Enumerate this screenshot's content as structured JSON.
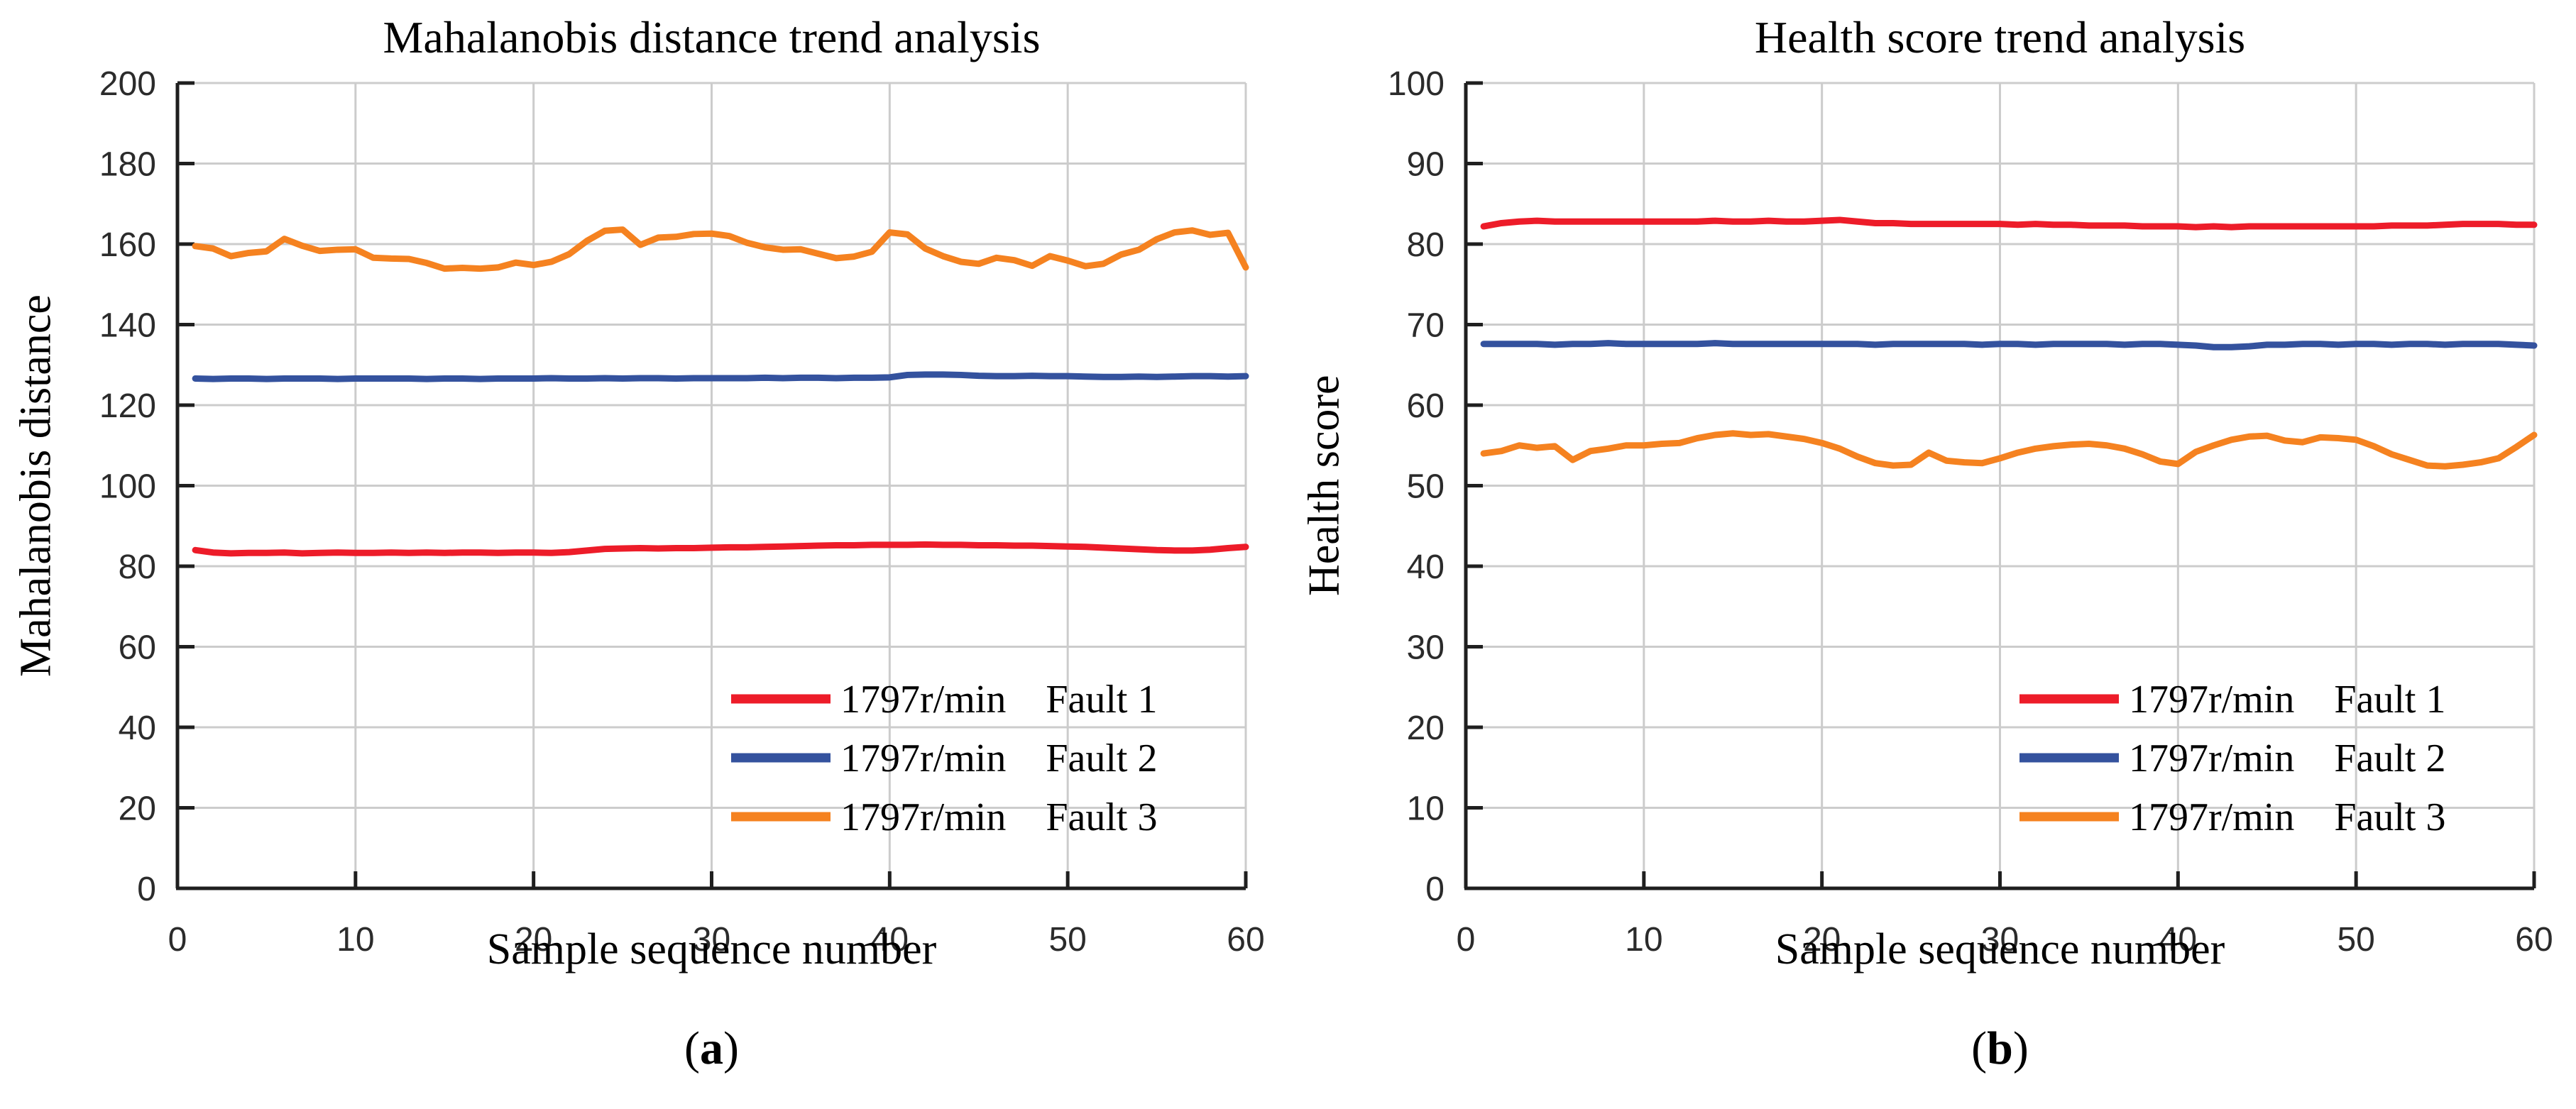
{
  "figure": {
    "background": "#ffffff"
  },
  "colors": {
    "fault1_red": "#ed1c29",
    "fault2_blue": "#34529e",
    "fault3_orange": "#f58220",
    "gridline": "#cccccc",
    "axis": "#1f1f1f",
    "tick_text": "#2b2b2b"
  },
  "panels": [
    {
      "id": "a",
      "title": "Mahalanobis distance trend analysis",
      "ylabel": "Mahalanobis distance",
      "xlabel": "Sample sequence number",
      "sublabel": {
        "open": "(",
        "letter": "a",
        "close": ")"
      }
    },
    {
      "id": "b",
      "title": "Health score trend analysis",
      "ylabel": "Health score",
      "xlabel": "Sample sequence number",
      "sublabel": {
        "open": "(",
        "letter": "b",
        "close": ")"
      }
    }
  ],
  "chart_data": [
    {
      "type": "line",
      "title": "Mahalanobis distance trend analysis",
      "xlabel": "Sample sequence number",
      "ylabel": "Mahalanobis distance",
      "xlim": [
        0,
        60
      ],
      "ylim": [
        0,
        200
      ],
      "xticks": [
        0,
        10,
        20,
        30,
        40,
        50,
        60
      ],
      "yticks": [
        0,
        20,
        40,
        60,
        80,
        100,
        120,
        140,
        160,
        180,
        200
      ],
      "grid": true,
      "legend_position": "lower right",
      "x": [
        1,
        2,
        3,
        4,
        5,
        6,
        7,
        8,
        9,
        10,
        11,
        12,
        13,
        14,
        15,
        16,
        17,
        18,
        19,
        20,
        21,
        22,
        23,
        24,
        25,
        26,
        27,
        28,
        29,
        30,
        31,
        32,
        33,
        34,
        35,
        36,
        37,
        38,
        39,
        40,
        41,
        42,
        43,
        44,
        45,
        46,
        47,
        48,
        49,
        50,
        51,
        52,
        53,
        54,
        55,
        56,
        57,
        58,
        59,
        60
      ],
      "series": [
        {
          "name": "1797r/min Fault 1",
          "speed": "1797r/min",
          "fault": "Fault 1",
          "color": "#ed1c29",
          "values": [
            84.0,
            83.4,
            83.2,
            83.3,
            83.3,
            83.4,
            83.2,
            83.3,
            83.4,
            83.3,
            83.3,
            83.4,
            83.3,
            83.4,
            83.3,
            83.4,
            83.4,
            83.3,
            83.4,
            83.4,
            83.3,
            83.5,
            83.9,
            84.3,
            84.4,
            84.5,
            84.4,
            84.5,
            84.5,
            84.6,
            84.7,
            84.7,
            84.8,
            84.9,
            85.0,
            85.1,
            85.2,
            85.2,
            85.3,
            85.3,
            85.3,
            85.4,
            85.3,
            85.3,
            85.2,
            85.2,
            85.1,
            85.1,
            85.0,
            84.9,
            84.8,
            84.6,
            84.4,
            84.2,
            84.0,
            83.9,
            83.9,
            84.1,
            84.5,
            84.8
          ]
        },
        {
          "name": "1797r/min Fault 2",
          "speed": "1797r/min",
          "fault": "Fault 2",
          "color": "#34529e",
          "values": [
            126.6,
            126.5,
            126.6,
            126.6,
            126.5,
            126.6,
            126.6,
            126.6,
            126.5,
            126.6,
            126.6,
            126.6,
            126.6,
            126.5,
            126.6,
            126.6,
            126.5,
            126.6,
            126.6,
            126.6,
            126.7,
            126.6,
            126.6,
            126.7,
            126.6,
            126.7,
            126.7,
            126.6,
            126.7,
            126.7,
            126.7,
            126.7,
            126.8,
            126.7,
            126.8,
            126.8,
            126.7,
            126.8,
            126.8,
            126.9,
            127.5,
            127.6,
            127.6,
            127.5,
            127.3,
            127.2,
            127.2,
            127.3,
            127.2,
            127.2,
            127.1,
            127.0,
            127.0,
            127.1,
            127.0,
            127.1,
            127.2,
            127.2,
            127.1,
            127.2
          ]
        },
        {
          "name": "1797r/min Fault 3",
          "speed": "1797r/min",
          "fault": "Fault 3",
          "color": "#f58220",
          "values": [
            159.5,
            158.9,
            157.0,
            157.8,
            158.2,
            161.3,
            159.6,
            158.3,
            158.6,
            158.7,
            156.6,
            156.4,
            156.3,
            155.3,
            153.9,
            154.1,
            153.9,
            154.2,
            155.4,
            154.8,
            155.6,
            157.5,
            160.8,
            163.3,
            163.6,
            159.8,
            161.6,
            161.8,
            162.5,
            162.6,
            162.0,
            160.3,
            159.2,
            158.6,
            158.7,
            157.6,
            156.5,
            156.9,
            158.1,
            162.9,
            162.4,
            158.9,
            157.0,
            155.6,
            155.1,
            156.6,
            156.0,
            154.6,
            157.0,
            155.9,
            154.5,
            155.1,
            157.4,
            158.6,
            161.2,
            162.9,
            163.4,
            162.3,
            162.8,
            154.2
          ]
        }
      ]
    },
    {
      "type": "line",
      "title": "Health score trend analysis",
      "xlabel": "Sample sequence number",
      "ylabel": "Health score",
      "xlim": [
        0,
        60
      ],
      "ylim": [
        0,
        100
      ],
      "xticks": [
        0,
        10,
        20,
        30,
        40,
        50,
        60
      ],
      "yticks": [
        0,
        10,
        20,
        30,
        40,
        50,
        60,
        70,
        80,
        90,
        100
      ],
      "grid": true,
      "legend_position": "lower right",
      "x": [
        1,
        2,
        3,
        4,
        5,
        6,
        7,
        8,
        9,
        10,
        11,
        12,
        13,
        14,
        15,
        16,
        17,
        18,
        19,
        20,
        21,
        22,
        23,
        24,
        25,
        26,
        27,
        28,
        29,
        30,
        31,
        32,
        33,
        34,
        35,
        36,
        37,
        38,
        39,
        40,
        41,
        42,
        43,
        44,
        45,
        46,
        47,
        48,
        49,
        50,
        51,
        52,
        53,
        54,
        55,
        56,
        57,
        58,
        59,
        60
      ],
      "series": [
        {
          "name": "1797r/min Fault 1",
          "speed": "1797r/min",
          "fault": "Fault 1",
          "color": "#ed1c29",
          "values": [
            82.2,
            82.6,
            82.8,
            82.9,
            82.8,
            82.8,
            82.8,
            82.8,
            82.8,
            82.8,
            82.8,
            82.8,
            82.8,
            82.9,
            82.8,
            82.8,
            82.9,
            82.8,
            82.8,
            82.9,
            83.0,
            82.8,
            82.6,
            82.6,
            82.5,
            82.5,
            82.5,
            82.5,
            82.5,
            82.5,
            82.4,
            82.5,
            82.4,
            82.4,
            82.3,
            82.3,
            82.3,
            82.2,
            82.2,
            82.2,
            82.1,
            82.2,
            82.1,
            82.2,
            82.2,
            82.2,
            82.2,
            82.2,
            82.2,
            82.2,
            82.2,
            82.3,
            82.3,
            82.3,
            82.4,
            82.5,
            82.5,
            82.5,
            82.4,
            82.4
          ]
        },
        {
          "name": "1797r/min Fault 2",
          "speed": "1797r/min",
          "fault": "Fault 2",
          "color": "#34529e",
          "values": [
            67.6,
            67.6,
            67.6,
            67.6,
            67.5,
            67.6,
            67.6,
            67.7,
            67.6,
            67.6,
            67.6,
            67.6,
            67.6,
            67.7,
            67.6,
            67.6,
            67.6,
            67.6,
            67.6,
            67.6,
            67.6,
            67.6,
            67.5,
            67.6,
            67.6,
            67.6,
            67.6,
            67.6,
            67.5,
            67.6,
            67.6,
            67.5,
            67.6,
            67.6,
            67.6,
            67.6,
            67.5,
            67.6,
            67.6,
            67.5,
            67.4,
            67.2,
            67.2,
            67.3,
            67.5,
            67.5,
            67.6,
            67.6,
            67.5,
            67.6,
            67.6,
            67.5,
            67.6,
            67.6,
            67.5,
            67.6,
            67.6,
            67.6,
            67.5,
            67.4
          ]
        },
        {
          "name": "1797r/min Fault 3",
          "speed": "1797r/min",
          "fault": "Fault 3",
          "color": "#f58220",
          "values": [
            54.0,
            54.3,
            55.0,
            54.7,
            54.9,
            53.2,
            54.3,
            54.6,
            55.0,
            55.0,
            55.2,
            55.3,
            55.9,
            56.3,
            56.5,
            56.3,
            56.4,
            56.1,
            55.8,
            55.3,
            54.6,
            53.6,
            52.8,
            52.5,
            52.6,
            54.1,
            53.1,
            52.9,
            52.8,
            53.4,
            54.1,
            54.6,
            54.9,
            55.1,
            55.2,
            55.0,
            54.6,
            53.9,
            53.0,
            52.7,
            54.2,
            55.0,
            55.7,
            56.1,
            56.2,
            55.6,
            55.4,
            56.0,
            55.9,
            55.7,
            54.9,
            53.9,
            53.2,
            52.5,
            52.4,
            52.6,
            52.9,
            53.4,
            54.8,
            56.3
          ]
        }
      ]
    }
  ]
}
